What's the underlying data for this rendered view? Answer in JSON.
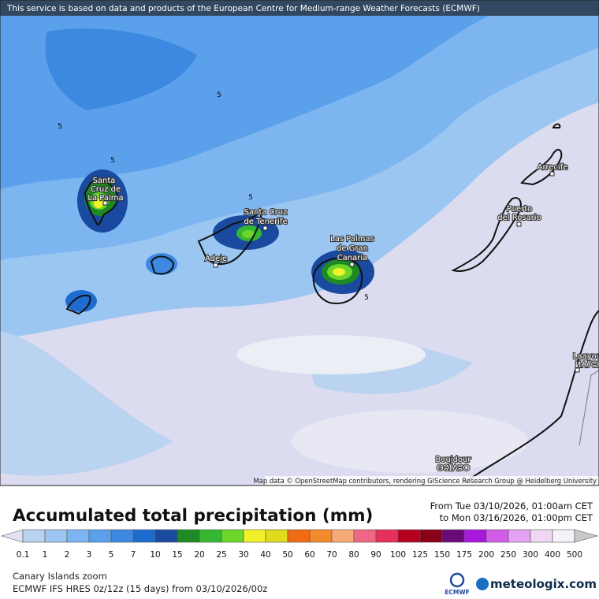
{
  "notice": "This service is based on data and products of the European Centre for Medium-range Weather Forecasts (ECMWF)",
  "map": {
    "labels": [
      {
        "lines": [
          "Santa",
          "Cruz de",
          "La Palma"
        ]
      },
      {
        "lines": [
          "Santa Cruz",
          "de Tenerife"
        ]
      },
      {
        "lines": [
          "Adeje"
        ]
      },
      {
        "lines": [
          "Las Palmas",
          "de Gran",
          "Canaria"
        ]
      },
      {
        "lines": [
          "Puerto",
          "del Rosario"
        ]
      },
      {
        "lines": [
          "Arrecife"
        ]
      },
      {
        "lines": [
          "Laayou",
          "ⵍⵄⵢⵓⵏ"
        ]
      },
      {
        "lines": [
          "Boujdour",
          "ⴱⵓⵊⴷⵓⵔ"
        ]
      }
    ],
    "contour_labels": [
      "5",
      "5",
      "5",
      "5",
      "5"
    ],
    "attribution": "Map data © OpenStreetMap contributors, rendering GIScience Research Group @ Heidelberg University"
  },
  "legend": {
    "title": "Accumulated total precipitation (mm)",
    "from": "From Tue 03/10/2026, 01:00am CET",
    "to": "to Mon 03/16/2026, 01:00pm CET",
    "ticks": [
      "0.1",
      "1",
      "2",
      "3",
      "5",
      "7",
      "10",
      "15",
      "20",
      "25",
      "30",
      "40",
      "50",
      "60",
      "70",
      "80",
      "90",
      "100",
      "125",
      "150",
      "175",
      "200",
      "250",
      "300",
      "400",
      "500"
    ],
    "colors": [
      "#e2e2f2",
      "#b9d3f0",
      "#9cc6f2",
      "#7cb5f0",
      "#5aa0ea",
      "#3d88e0",
      "#1f6ccf",
      "#1a4aa0",
      "#1e8a24",
      "#34b834",
      "#6cd62a",
      "#f2f22a",
      "#e2da1c",
      "#ef6c12",
      "#f48a2e",
      "#f5aa78",
      "#f06686",
      "#e4305a",
      "#b4001e",
      "#8a0016",
      "#6a0a78",
      "#a818dc",
      "#d25ce8",
      "#e6a2f2",
      "#f2d6f6",
      "#f6f2fa",
      "#c8c8c8"
    ]
  },
  "footer": {
    "region": "Canary Islands zoom",
    "model": "ECMWF IFS HRES 0z/12z (15 days) from  03/10/2026/00z",
    "ecmwf": "ECMWF",
    "brand": "meteologix.com"
  }
}
